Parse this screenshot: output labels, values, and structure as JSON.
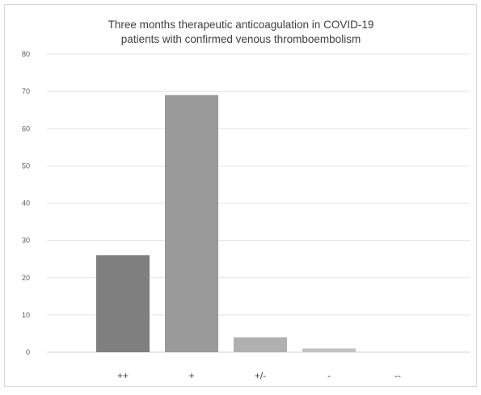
{
  "chart_data": {
    "type": "bar",
    "title_lines": [
      "Three months therapeutic anticoagulation in COVID-19",
      "patients with confirmed venous thromboembolism"
    ],
    "categories": [
      "++",
      "+",
      "+/-",
      "-",
      "--"
    ],
    "values": [
      26,
      69,
      4,
      1,
      0
    ],
    "ylim": [
      0,
      80
    ],
    "yticks": [
      "0",
      "10",
      "20",
      "30",
      "40",
      "50",
      "60",
      "70",
      "80"
    ],
    "grid": true,
    "bar_colors": [
      "#7f7f7f",
      "#9a9a9a",
      "#b0b0b0",
      "#c3c3c3",
      "#cfcfcf"
    ]
  }
}
